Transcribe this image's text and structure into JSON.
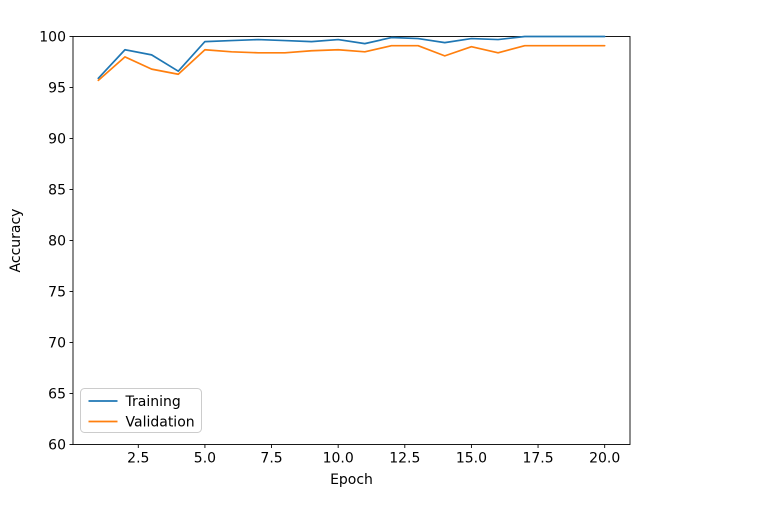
{
  "chart_data": {
    "type": "line",
    "title": "",
    "xlabel": "Epoch",
    "ylabel": "Accuracy",
    "x": [
      1,
      2,
      3,
      4,
      5,
      6,
      7,
      8,
      9,
      10,
      11,
      12,
      13,
      14,
      15,
      16,
      17,
      18,
      19,
      20
    ],
    "series": [
      {
        "name": "Training",
        "color": "#1f77b4",
        "values": [
          95.9,
          98.7,
          98.2,
          96.6,
          99.5,
          99.6,
          99.7,
          99.6,
          99.5,
          99.7,
          99.3,
          99.9,
          99.8,
          99.4,
          99.8,
          99.7,
          100.0,
          100.0,
          100.0,
          100.0
        ]
      },
      {
        "name": "Validation",
        "color": "#ff7f0e",
        "values": [
          95.7,
          98.0,
          96.8,
          96.3,
          98.7,
          98.5,
          98.4,
          98.4,
          98.6,
          98.7,
          98.5,
          99.1,
          99.1,
          98.1,
          99.0,
          98.4,
          99.1,
          99.1,
          99.1,
          99.1
        ]
      }
    ],
    "xlim": [
      0.05,
      20.95
    ],
    "ylim": [
      60,
      100
    ],
    "xtick_labels": [
      "2.5",
      "5.0",
      "7.5",
      "10.0",
      "12.5",
      "15.0",
      "17.5",
      "20.0"
    ],
    "ytick_labels": [
      "60",
      "65",
      "70",
      "75",
      "80",
      "85",
      "90",
      "95",
      "100"
    ],
    "grid": false,
    "legend_position": "lower-left",
    "axis_color": "#000000",
    "legend_border_color": "#cccccc",
    "legend_background": "#ffffff"
  },
  "legend": {
    "items": [
      {
        "label": "Training"
      },
      {
        "label": "Validation"
      }
    ]
  }
}
